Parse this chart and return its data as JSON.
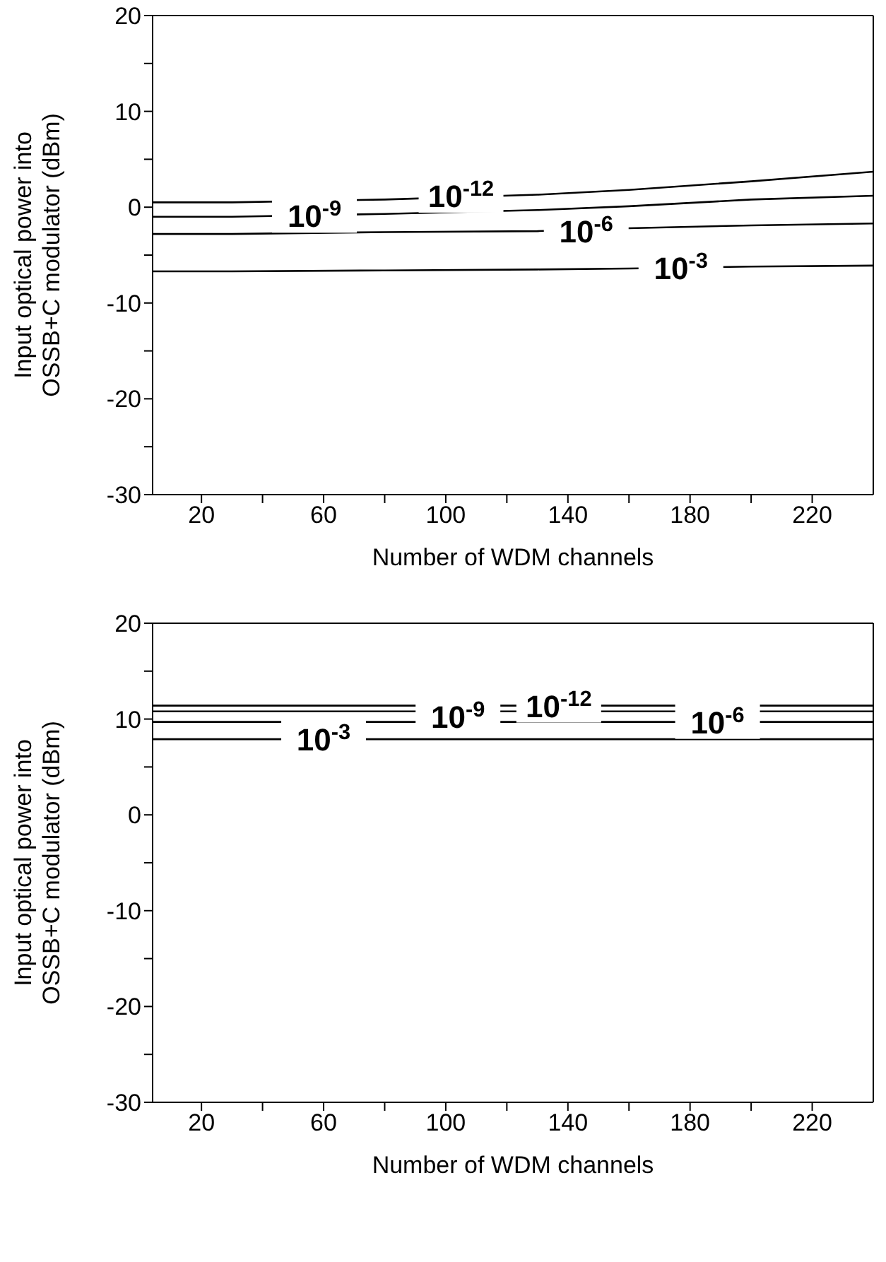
{
  "chart_data": [
    {
      "type": "line",
      "xlabel": "Number of WDM channels",
      "ylabel": "Input optical power into\nOSSB+C modulator (dBm)",
      "x": [
        4,
        30,
        80,
        130,
        160,
        200,
        240
      ],
      "series": [
        {
          "color": "#000000",
          "values": [
            0.5,
            0.5,
            0.8,
            1.3,
            1.8,
            2.7,
            3.7
          ]
        },
        {
          "color": "#000000",
          "values": [
            -1.0,
            -1.0,
            -0.7,
            -0.3,
            0.1,
            0.8,
            1.2
          ]
        },
        {
          "color": "#000000",
          "values": [
            -2.8,
            -2.8,
            -2.6,
            -2.5,
            -2.2,
            -1.9,
            -1.7
          ]
        },
        {
          "color": "#000000",
          "values": [
            -6.7,
            -6.7,
            -6.6,
            -6.5,
            -6.4,
            -6.2,
            -6.1
          ]
        }
      ],
      "annotations": [
        {
          "text": "10$^{-12}$",
          "x": 105,
          "y": 1.2
        },
        {
          "text": "10$^{-9}$",
          "x": 57,
          "y": -0.9
        },
        {
          "text": "10$^{-6}$",
          "x": 146,
          "y": -2.5
        },
        {
          "text": "10$^{-3}$",
          "x": 177,
          "y": -6.3
        }
      ],
      "xlim": [
        4,
        240
      ],
      "xticks": [
        20,
        {
          "value": 40,
          "label": null
        },
        60,
        {
          "value": 80,
          "label": null
        },
        100,
        {
          "value": 120,
          "label": null
        },
        140,
        {
          "value": 160,
          "label": null
        },
        180,
        {
          "value": 200,
          "label": null
        },
        220
      ],
      "ylim": [
        -30,
        20
      ],
      "yticks": [
        -30,
        {
          "value": -25,
          "label": null
        },
        -20,
        {
          "value": -15,
          "label": null
        },
        -10,
        {
          "value": -5,
          "label": null
        },
        0,
        {
          "value": 5,
          "label": null
        },
        10,
        {
          "value": 15,
          "label": null
        },
        20
      ],
      "grid": false,
      "legend": false,
      "marker": "none",
      "line_style": "solid"
    },
    {
      "type": "line",
      "xlabel": "Number of WDM channels",
      "ylabel": "Input optical power into\nOSSB+C modulator (dBm)",
      "x": [
        4,
        240
      ],
      "series": [
        {
          "color": "#000000",
          "values": [
            11.4,
            11.4
          ]
        },
        {
          "color": "#000000",
          "values": [
            10.8,
            10.8
          ]
        },
        {
          "color": "#000000",
          "values": [
            9.7,
            9.7
          ]
        },
        {
          "color": "#000000",
          "values": [
            7.9,
            7.9
          ]
        }
      ],
      "annotations": [
        {
          "text": "10$^{-12}$",
          "x": 137,
          "y": 11.4
        },
        {
          "text": "10$^{-9}$",
          "x": 104,
          "y": 10.3
        },
        {
          "text": "10$^{-6}$",
          "x": 189,
          "y": 9.7
        },
        {
          "text": "10$^{-3}$",
          "x": 60,
          "y": 7.9
        }
      ],
      "xlim": [
        4,
        240
      ],
      "xticks": [
        20,
        {
          "value": 40,
          "label": null
        },
        60,
        {
          "value": 80,
          "label": null
        },
        100,
        {
          "value": 120,
          "label": null
        },
        140,
        {
          "value": 160,
          "label": null
        },
        180,
        {
          "value": 200,
          "label": null
        },
        220
      ],
      "ylim": [
        -30,
        20
      ],
      "yticks": [
        -30,
        {
          "value": -25,
          "label": null
        },
        -20,
        {
          "value": -15,
          "label": null
        },
        -10,
        {
          "value": -5,
          "label": null
        },
        0,
        {
          "value": 5,
          "label": null
        },
        10,
        {
          "value": 15,
          "label": null
        },
        20
      ],
      "grid": false,
      "legend": false,
      "marker": "none",
      "line_style": "solid"
    }
  ]
}
